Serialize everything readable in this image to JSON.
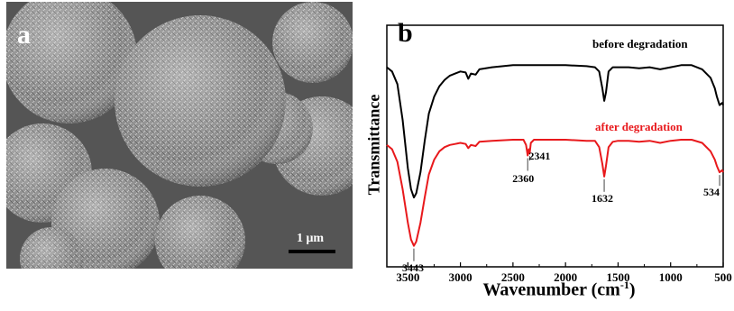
{
  "panel_a": {
    "letter": "a",
    "scale_bar_label": "1 μm"
  },
  "panel_b": {
    "letter": "b"
  },
  "chart_data": {
    "type": "line",
    "title": "",
    "xlabel": "Wavenumber (cm",
    "xlabel_superscript": "-1",
    "ylabel": "Transmittance",
    "xlim": [
      3700,
      500
    ],
    "x_ticks": [
      3500,
      3000,
      2500,
      2000,
      1500,
      1000,
      500
    ],
    "x_tick_labels": [
      "3500",
      "3000",
      "2500",
      "2000",
      "1500",
      "1000",
      "500"
    ],
    "y_ticks_shown": false,
    "grid": false,
    "series": [
      {
        "name": "before degradation",
        "color": "#000000",
        "points": [
          [
            3700,
            0.8
          ],
          [
            3650,
            0.78
          ],
          [
            3600,
            0.72
          ],
          [
            3550,
            0.55
          ],
          [
            3500,
            0.32
          ],
          [
            3470,
            0.22
          ],
          [
            3443,
            0.18
          ],
          [
            3420,
            0.2
          ],
          [
            3380,
            0.3
          ],
          [
            3340,
            0.45
          ],
          [
            3300,
            0.58
          ],
          [
            3250,
            0.66
          ],
          [
            3200,
            0.71
          ],
          [
            3150,
            0.74
          ],
          [
            3100,
            0.76
          ],
          [
            3050,
            0.77
          ],
          [
            3000,
            0.78
          ],
          [
            2950,
            0.775
          ],
          [
            2925,
            0.745
          ],
          [
            2900,
            0.77
          ],
          [
            2855,
            0.765
          ],
          [
            2820,
            0.79
          ],
          [
            2700,
            0.8
          ],
          [
            2500,
            0.81
          ],
          [
            2360,
            0.81
          ],
          [
            2200,
            0.81
          ],
          [
            2000,
            0.81
          ],
          [
            1800,
            0.805
          ],
          [
            1720,
            0.8
          ],
          [
            1680,
            0.78
          ],
          [
            1650,
            0.7
          ],
          [
            1632,
            0.64
          ],
          [
            1615,
            0.68
          ],
          [
            1590,
            0.78
          ],
          [
            1550,
            0.8
          ],
          [
            1500,
            0.8
          ],
          [
            1400,
            0.8
          ],
          [
            1300,
            0.795
          ],
          [
            1200,
            0.8
          ],
          [
            1100,
            0.79
          ],
          [
            1000,
            0.8
          ],
          [
            900,
            0.81
          ],
          [
            800,
            0.81
          ],
          [
            700,
            0.79
          ],
          [
            620,
            0.75
          ],
          [
            580,
            0.7
          ],
          [
            560,
            0.66
          ],
          [
            534,
            0.62
          ],
          [
            510,
            0.63
          ],
          [
            500,
            0.62
          ]
        ]
      },
      {
        "name": "after degradation",
        "color": "#e8191c",
        "points": [
          [
            3700,
            0.43
          ],
          [
            3650,
            0.41
          ],
          [
            3600,
            0.35
          ],
          [
            3550,
            0.22
          ],
          [
            3500,
            0.06
          ],
          [
            3470,
            -0.02
          ],
          [
            3443,
            -0.05
          ],
          [
            3420,
            -0.03
          ],
          [
            3380,
            0.06
          ],
          [
            3340,
            0.18
          ],
          [
            3300,
            0.29
          ],
          [
            3250,
            0.36
          ],
          [
            3200,
            0.4
          ],
          [
            3150,
            0.42
          ],
          [
            3100,
            0.43
          ],
          [
            3050,
            0.435
          ],
          [
            3000,
            0.44
          ],
          [
            2950,
            0.435
          ],
          [
            2925,
            0.415
          ],
          [
            2900,
            0.43
          ],
          [
            2855,
            0.425
          ],
          [
            2820,
            0.445
          ],
          [
            2700,
            0.45
          ],
          [
            2500,
            0.455
          ],
          [
            2400,
            0.455
          ],
          [
            2375,
            0.43
          ],
          [
            2360,
            0.38
          ],
          [
            2350,
            0.41
          ],
          [
            2341,
            0.39
          ],
          [
            2330,
            0.44
          ],
          [
            2300,
            0.455
          ],
          [
            2200,
            0.455
          ],
          [
            2000,
            0.455
          ],
          [
            1800,
            0.45
          ],
          [
            1720,
            0.45
          ],
          [
            1680,
            0.42
          ],
          [
            1650,
            0.34
          ],
          [
            1632,
            0.28
          ],
          [
            1615,
            0.33
          ],
          [
            1590,
            0.42
          ],
          [
            1550,
            0.445
          ],
          [
            1500,
            0.45
          ],
          [
            1400,
            0.45
          ],
          [
            1300,
            0.445
          ],
          [
            1200,
            0.45
          ],
          [
            1100,
            0.44
          ],
          [
            1000,
            0.45
          ],
          [
            900,
            0.455
          ],
          [
            800,
            0.455
          ],
          [
            700,
            0.44
          ],
          [
            620,
            0.4
          ],
          [
            580,
            0.36
          ],
          [
            560,
            0.33
          ],
          [
            534,
            0.3
          ],
          [
            510,
            0.31
          ],
          [
            500,
            0.3
          ]
        ]
      }
    ],
    "annotations": [
      {
        "label": "3443",
        "x": 3443,
        "y": -0.05
      },
      {
        "label": "2360",
        "x": 2360,
        "y": 0.38
      },
      {
        "label": "2341",
        "x": 2341,
        "y": 0.39
      },
      {
        "label": "1632",
        "x": 1632,
        "y": 0.28
      },
      {
        "label": "534",
        "x": 534,
        "y": 0.3
      }
    ]
  }
}
